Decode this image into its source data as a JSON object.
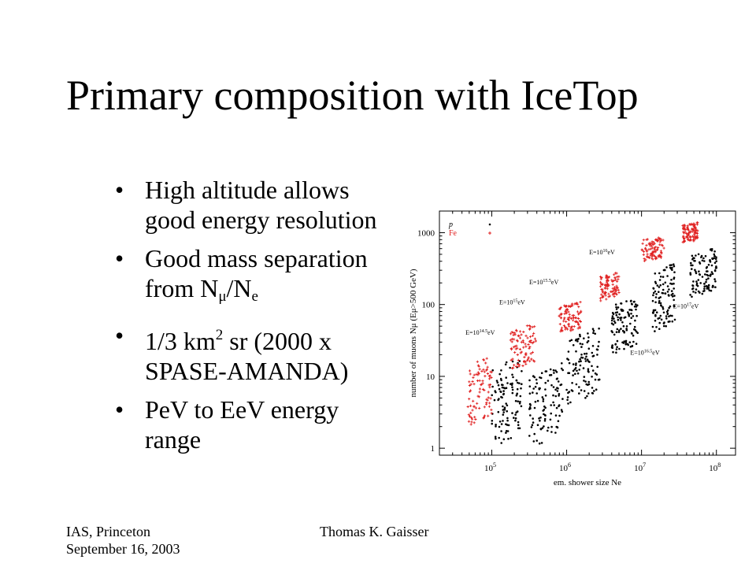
{
  "slide": {
    "title": "Primary composition with IceTop",
    "bullets": [
      {
        "line1": "High altitude allows",
        "line2": "good energy resolution"
      },
      {
        "line1": "Good mass separation",
        "line2_pre": "from N",
        "sub1": "μ",
        "mid": "/N",
        "sub2": "e"
      },
      {
        "line1_pre": "1/3 km",
        "sup": "2",
        "line1_post": " sr (2000 x",
        "line2": "SPASE-AMANDA)"
      },
      {
        "line1": "PeV to EeV energy",
        "line2": "range"
      }
    ],
    "bullet_char": "•"
  },
  "figure": {
    "legend": [
      {
        "label": "p",
        "color": "#000000"
      },
      {
        "label": "Fe",
        "color": "#e02020"
      }
    ],
    "y_axis": {
      "label": "number of muons Nμ (Eμ>500 GeV)",
      "ticks": [
        "1",
        "10",
        "100",
        "1000"
      ]
    },
    "x_axis": {
      "label": "em. shower size Ne",
      "ticks": [
        "10",
        "10",
        "10",
        "10"
      ],
      "tick_exponents": [
        "5",
        "6",
        "7",
        "8"
      ]
    },
    "energy_labels": [
      {
        "text": "E=10",
        "exp": "14.5",
        "unit": "eV"
      },
      {
        "text": "E=10",
        "exp": "15",
        "unit": "eV"
      },
      {
        "text": "E=10",
        "exp": "15.5",
        "unit": "eV"
      },
      {
        "text": "E=10",
        "exp": "16",
        "unit": "eV"
      },
      {
        "text": "E=10",
        "exp": "16.5",
        "unit": "eV"
      },
      {
        "text": "E=10",
        "exp": "17",
        "unit": "eV"
      }
    ],
    "colors": {
      "proton": "#000000",
      "iron": "#e02020"
    }
  },
  "footer": {
    "left_line1": "IAS, Princeton",
    "left_line2": "September 16, 2003",
    "center": "Thomas K. Gaisser"
  },
  "chart_data": {
    "type": "scatter",
    "title": "",
    "xlabel": "em. shower size Ne",
    "ylabel": "number of muons Nμ (Eμ>500 GeV)",
    "x_scale": "log",
    "y_scale": "log",
    "xlim": [
      20000,
      180000000
    ],
    "ylim": [
      0.8,
      2000
    ],
    "series": [
      {
        "name": "p",
        "color": "#000000",
        "marker": "dot"
      },
      {
        "name": "Fe",
        "color": "#e02020",
        "marker": "plus"
      }
    ],
    "clusters": [
      {
        "energy": "E=10^14.5 eV",
        "p": {
          "logx": [
            5.0,
            5.4
          ],
          "logy": [
            0.0,
            1.3
          ]
        },
        "Fe": {
          "logx": [
            4.68,
            5.0
          ],
          "logy": [
            0.3,
            1.3
          ]
        }
      },
      {
        "energy": "E=10^15 eV",
        "p": {
          "logx": [
            5.5,
            5.95
          ],
          "logy": [
            0.0,
            1.2
          ]
        },
        "Fe": {
          "logx": [
            5.25,
            5.6
          ],
          "logy": [
            1.1,
            1.75
          ]
        }
      },
      {
        "energy": "E=10^15.5 eV",
        "p": {
          "logx": [
            6.0,
            6.45
          ],
          "logy": [
            0.6,
            1.7
          ]
        },
        "Fe": {
          "logx": [
            5.9,
            6.2
          ],
          "logy": [
            1.6,
            2.05
          ]
        }
      },
      {
        "energy": "E=10^16 eV",
        "p": {
          "logx": [
            6.6,
            6.95
          ],
          "logy": [
            1.3,
            2.1
          ]
        },
        "Fe": {
          "logx": [
            6.45,
            6.7
          ],
          "logy": [
            2.05,
            2.45
          ]
        }
      },
      {
        "energy": "E=10^16.5 eV",
        "p": {
          "logx": [
            7.15,
            7.45
          ],
          "logy": [
            1.6,
            2.6
          ]
        },
        "Fe": {
          "logx": [
            7.0,
            7.3
          ],
          "logy": [
            2.6,
            2.95
          ]
        }
      },
      {
        "energy": "E=10^17 eV",
        "p": {
          "logx": [
            7.65,
            8.0
          ],
          "logy": [
            2.1,
            2.8
          ]
        },
        "Fe": {
          "logx": [
            7.55,
            7.75
          ],
          "logy": [
            2.85,
            3.15
          ]
        }
      }
    ]
  }
}
